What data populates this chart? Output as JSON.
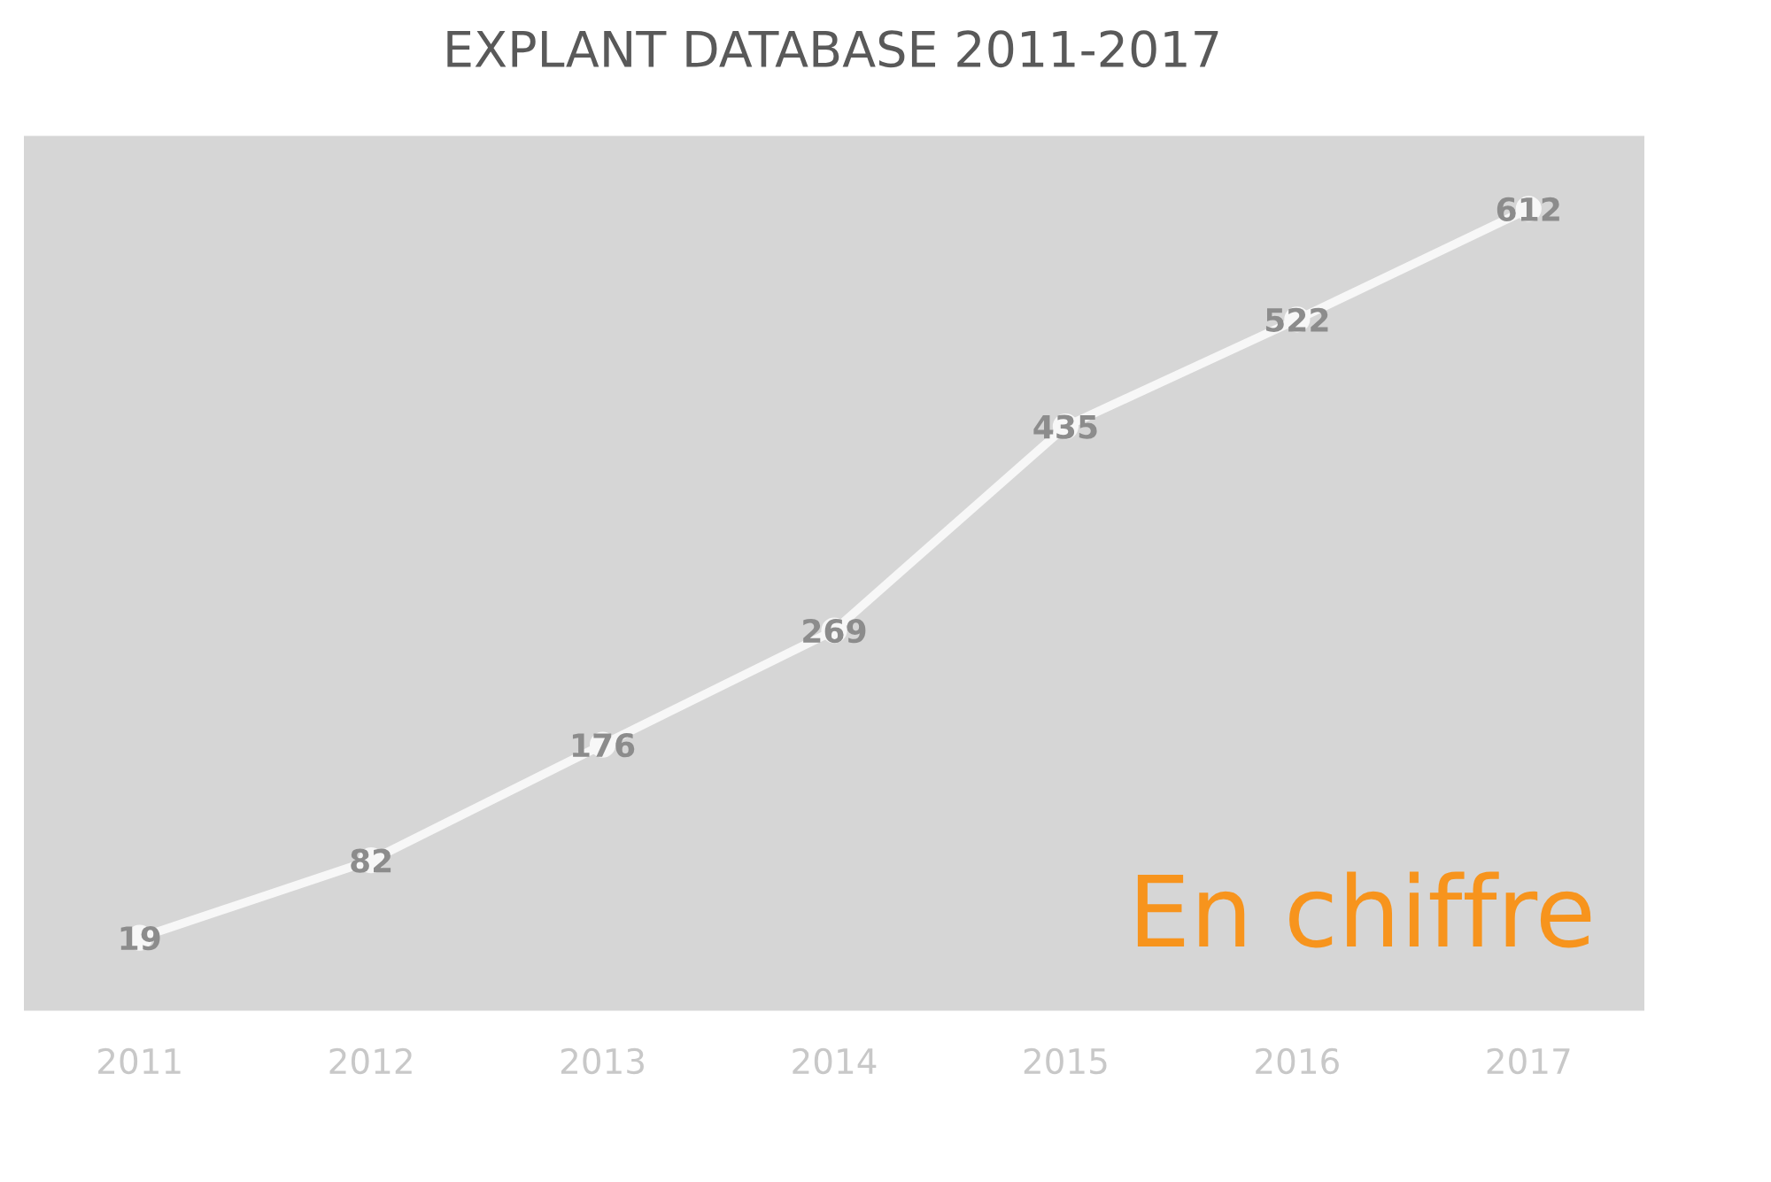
{
  "chart_data": {
    "type": "line",
    "title": "EXPLANT DATABASE 2011-2017",
    "categories": [
      "2011",
      "2012",
      "2013",
      "2014",
      "2015",
      "2016",
      "2017"
    ],
    "series": [
      {
        "color": "#f7f7f7",
        "values": [
          19,
          82,
          176,
          269,
          435,
          522,
          612
        ]
      }
    ],
    "data_labels": true,
    "marker": "circle",
    "line_style": "solid",
    "grid": false,
    "legend": false,
    "tick_labels": "x",
    "annotations": [
      "En chiffre"
    ]
  }
}
